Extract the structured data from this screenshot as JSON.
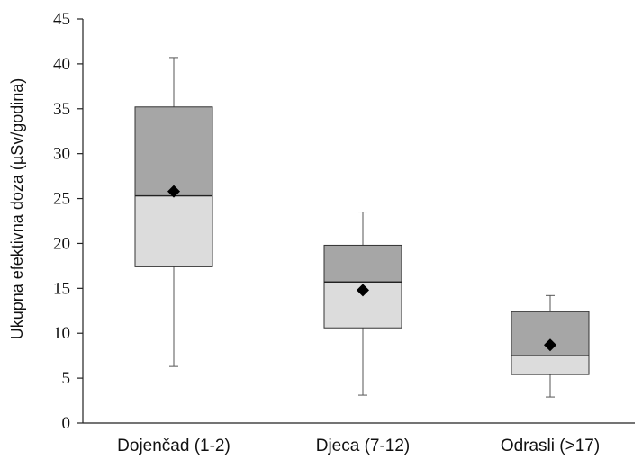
{
  "chart_data": {
    "type": "box",
    "title": "",
    "xlabel": "",
    "ylabel": "Ukupna efektivna doza (µSv/godina)",
    "ylim": [
      0,
      45
    ],
    "yticks": [
      0,
      5,
      10,
      15,
      20,
      25,
      30,
      35,
      40,
      45
    ],
    "grid": false,
    "categories": [
      "Dojenčad (1-2)",
      "Djeca (7-12)",
      "Odrasli (>17)"
    ],
    "boxes": [
      {
        "min": 6.3,
        "q1": 17.4,
        "median": 25.3,
        "q3": 35.2,
        "max": 40.7,
        "mean": 25.8
      },
      {
        "min": 3.1,
        "q1": 10.6,
        "median": 15.7,
        "q3": 19.8,
        "max": 23.5,
        "mean": 14.8
      },
      {
        "min": 2.9,
        "q1": 5.4,
        "median": 7.5,
        "q3": 12.4,
        "max": 14.2,
        "mean": 8.7
      }
    ],
    "colors": {
      "upper_box": "#a6a6a6",
      "lower_box": "#dcdcdc",
      "mean_marker": "#000000",
      "axis": "#222222"
    }
  }
}
